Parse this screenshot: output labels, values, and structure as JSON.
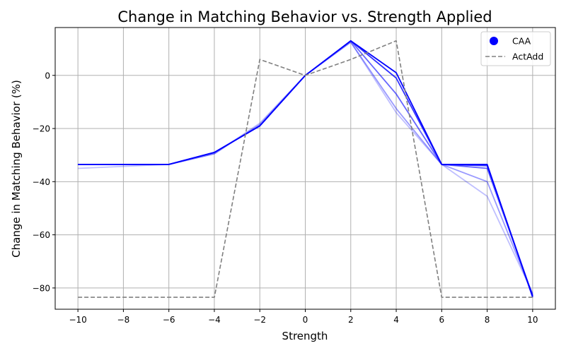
{
  "chart_data": {
    "type": "line",
    "title": "Change in Matching Behavior vs. Strength Applied",
    "xlabel": "Strength",
    "ylabel": "Change in Matching Behavior (%)",
    "xlim": [
      -11,
      11
    ],
    "ylim": [
      -88,
      18
    ],
    "xticks": [
      -10,
      -8,
      -6,
      -4,
      -2,
      0,
      2,
      4,
      6,
      8,
      10
    ],
    "yticks": [
      -80,
      -60,
      -40,
      -20,
      0
    ],
    "grid": true,
    "legend_position": "top-right",
    "legend": [
      {
        "label": "CAA",
        "marker": "circle",
        "color": "#0000ff"
      },
      {
        "label": "ActAdd",
        "style": "dashed",
        "color": "#808080"
      }
    ],
    "x": [
      -10,
      -6,
      -4,
      -2,
      0,
      2,
      4,
      6,
      8,
      10
    ],
    "series": [
      {
        "group": "CAA",
        "color": "#0000ff",
        "opacity": 0.25,
        "values": [
          -35,
          -33.5,
          -29.5,
          -18,
          0,
          12.5,
          -14,
          -33.5,
          -45.5,
          -82
        ]
      },
      {
        "group": "CAA",
        "color": "#0000ff",
        "opacity": 0.4,
        "values": [
          -33.5,
          -33.5,
          -29.5,
          -18.5,
          0,
          12.5,
          -12.5,
          -33.5,
          -40,
          -82.5
        ]
      },
      {
        "group": "CAA",
        "color": "#0000ff",
        "opacity": 0.6,
        "values": [
          -33.5,
          -33.5,
          -29,
          -19,
          0,
          13,
          -7,
          -33.5,
          -35,
          -83
        ]
      },
      {
        "group": "CAA",
        "color": "#0000ff",
        "opacity": 0.8,
        "values": [
          -33.5,
          -33.5,
          -29,
          -19,
          0,
          13,
          -1,
          -33.5,
          -34,
          -83
        ]
      },
      {
        "group": "CAA",
        "color": "#0000ff",
        "opacity": 1.0,
        "values": [
          -33.5,
          -33.5,
          -29,
          -19,
          0,
          13,
          1,
          -33.5,
          -33.5,
          -83.5
        ]
      },
      {
        "group": "ActAdd",
        "color": "#808080",
        "opacity": 1.0,
        "dashed": true,
        "values": [
          -83.5,
          -83.5,
          -83.5,
          6,
          0,
          6,
          13,
          -83.5,
          -83.5,
          -83.5
        ]
      }
    ]
  }
}
